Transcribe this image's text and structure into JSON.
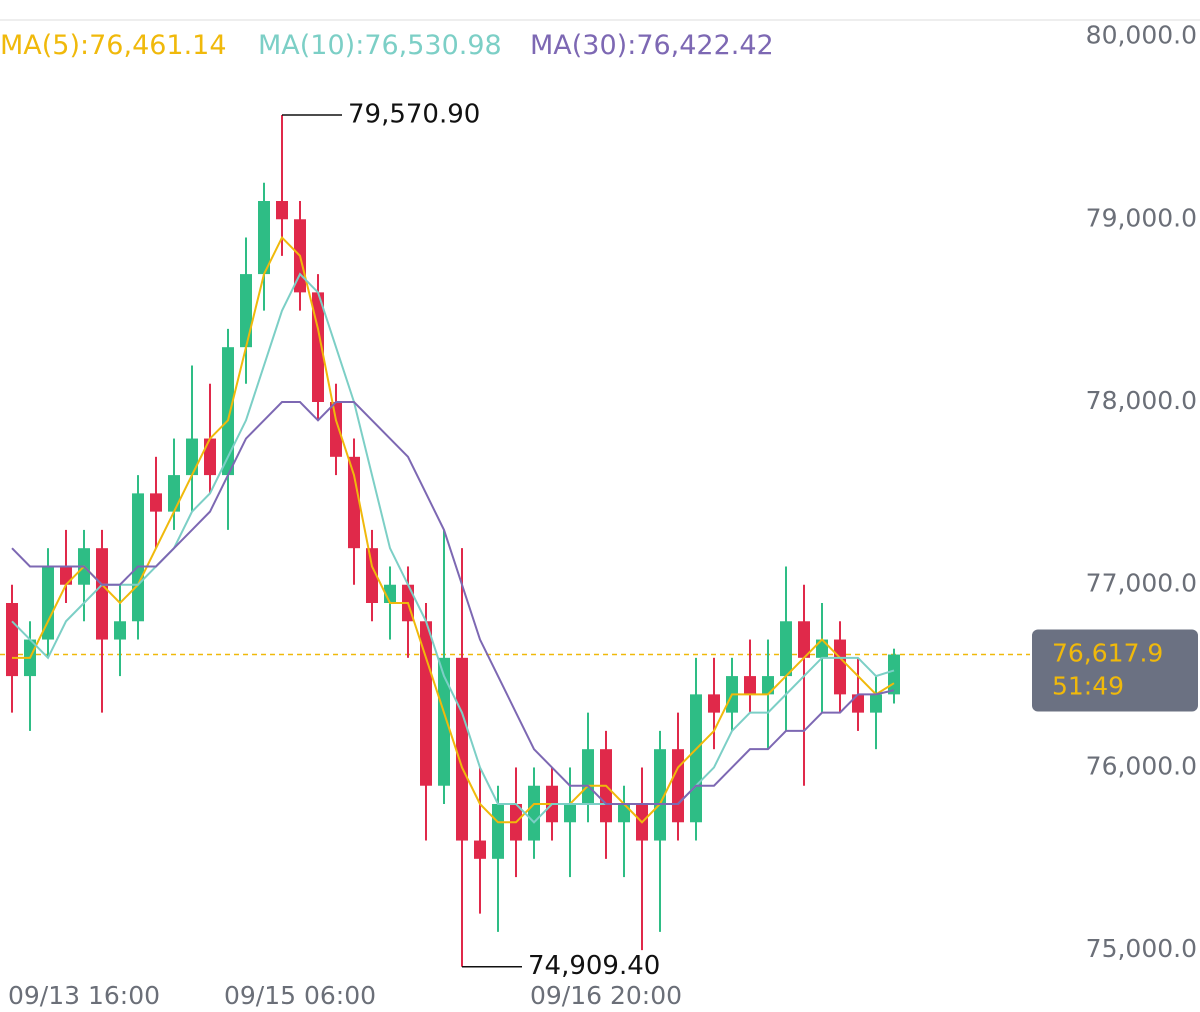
{
  "chart_data": {
    "type": "candlestick",
    "categories": [
      null,
      null,
      null,
      null,
      "09/13 16:00",
      null,
      null,
      null,
      null,
      null,
      null,
      null,
      null,
      null,
      null,
      null,
      "09/15 06:00",
      null,
      null,
      null,
      null,
      null,
      null,
      null,
      null,
      null,
      null,
      null,
      null,
      null,
      null,
      null,
      null,
      "09/16 20:00",
      null,
      null,
      null,
      null,
      null,
      null,
      null,
      null,
      null,
      null,
      null,
      null,
      null,
      null,
      null,
      null
    ],
    "open": [
      76900,
      76500,
      76700,
      77100,
      77000,
      77200,
      76700,
      76800,
      77500,
      77400,
      77600,
      77800,
      77600,
      78300,
      78700,
      79100,
      79000,
      78600,
      78000,
      77700,
      77200,
      76900,
      77000,
      76800,
      75900,
      76600,
      75600,
      75500,
      75800,
      75600,
      75900,
      75700,
      75800,
      76100,
      75700,
      75800,
      75600,
      76100,
      75700,
      76400,
      76300,
      76500,
      76400,
      76500,
      76800,
      76600,
      76700,
      76400,
      76300,
      76400
    ],
    "high": [
      77000,
      76800,
      77200,
      77300,
      77300,
      77300,
      77000,
      77600,
      77700,
      77800,
      78200,
      78100,
      78400,
      78900,
      79200,
      79570.9,
      79100,
      78700,
      78100,
      77800,
      77300,
      77100,
      77100,
      76900,
      77300,
      77200,
      76000,
      75900,
      76000,
      76000,
      76000,
      76000,
      76300,
      76200,
      75900,
      76000,
      76200,
      76300,
      76600,
      76600,
      76600,
      76700,
      76700,
      77100,
      77000,
      76900,
      76800,
      76600,
      76500,
      76650
    ],
    "low": [
      76300,
      76200,
      76600,
      76900,
      76800,
      76300,
      76500,
      76700,
      77200,
      77300,
      77400,
      77500,
      77300,
      78100,
      78500,
      78800,
      78500,
      77900,
      77600,
      77000,
      76800,
      76700,
      76600,
      75600,
      75800,
      74909.4,
      75200,
      75100,
      75400,
      75500,
      75600,
      75400,
      75700,
      75500,
      75400,
      75000,
      75100,
      75600,
      75600,
      76100,
      76200,
      76300,
      76100,
      76200,
      75900,
      76300,
      76300,
      76200,
      76100,
      76350
    ],
    "close": [
      76500,
      76700,
      77100,
      77000,
      77200,
      76700,
      76800,
      77500,
      77400,
      77600,
      77800,
      77600,
      78300,
      78700,
      79100,
      79000,
      78600,
      78000,
      77700,
      77200,
      76900,
      77000,
      76800,
      75900,
      76600,
      75600,
      75500,
      75800,
      75600,
      75900,
      75700,
      75800,
      76100,
      75700,
      75800,
      75600,
      76100,
      75700,
      76400,
      76300,
      76500,
      76400,
      76500,
      76800,
      76600,
      76700,
      76400,
      76300,
      76400,
      76617.9
    ],
    "up_color": "#2ebd85",
    "down_color": "#e0294a",
    "series": [
      {
        "name": "MA(5)",
        "color": "#f0b90b",
        "legend_label": "76,461.14",
        "values": [
          76600,
          76600,
          76800,
          77000,
          77100,
          77000,
          76900,
          77000,
          77200,
          77400,
          77600,
          77800,
          77900,
          78300,
          78700,
          78900,
          78800,
          78400,
          77900,
          77600,
          77100,
          76900,
          76900,
          76600,
          76300,
          76000,
          75800,
          75700,
          75700,
          75800,
          75800,
          75800,
          75900,
          75900,
          75800,
          75700,
          75800,
          76000,
          76100,
          76200,
          76400,
          76400,
          76400,
          76500,
          76600,
          76700,
          76600,
          76500,
          76400,
          76461.14
        ]
      },
      {
        "name": "MA(10)",
        "color": "#7ccfc6",
        "legend_label": "76,530.98",
        "values": [
          76800,
          76700,
          76600,
          76800,
          76900,
          77000,
          77000,
          77000,
          77100,
          77200,
          77400,
          77500,
          77700,
          77900,
          78200,
          78500,
          78700,
          78600,
          78300,
          78000,
          77600,
          77200,
          77000,
          76800,
          76500,
          76300,
          76000,
          75800,
          75800,
          75700,
          75800,
          75800,
          75800,
          75800,
          75800,
          75800,
          75800,
          75800,
          75900,
          76000,
          76200,
          76300,
          76300,
          76400,
          76500,
          76600,
          76600,
          76600,
          76500,
          76530.98
        ]
      },
      {
        "name": "MA(30)",
        "color": "#7d68b3",
        "legend_label": "76,422.42",
        "values": [
          77200,
          77100,
          77100,
          77100,
          77100,
          77000,
          77000,
          77100,
          77100,
          77200,
          77300,
          77400,
          77600,
          77800,
          77900,
          78000,
          78000,
          77900,
          78000,
          78000,
          77900,
          77800,
          77700,
          77500,
          77300,
          77000,
          76700,
          76500,
          76300,
          76100,
          76000,
          75900,
          75900,
          75800,
          75800,
          75800,
          75800,
          75800,
          75900,
          75900,
          76000,
          76100,
          76100,
          76200,
          76200,
          76300,
          76300,
          76400,
          76400,
          76422.42
        ]
      }
    ],
    "ylim": [
      74700,
      80200
    ],
    "yticks": [
      {
        "value": 80000,
        "label": "80,000.0"
      },
      {
        "value": 79000,
        "label": "79,000.0"
      },
      {
        "value": 78000,
        "label": "78,000.0"
      },
      {
        "value": 77000,
        "label": "77,000.0"
      },
      {
        "value": 76000,
        "label": "76,000.0"
      },
      {
        "value": 75000,
        "label": "75,000.0"
      }
    ],
    "max_annotation": {
      "value": 79570.9,
      "label": "79,570.90"
    },
    "min_annotation": {
      "value": 74909.4,
      "label": "74,909.40"
    },
    "last_price": {
      "value": 76617.9,
      "label": "76,617.9"
    },
    "countdown": "51:49"
  }
}
